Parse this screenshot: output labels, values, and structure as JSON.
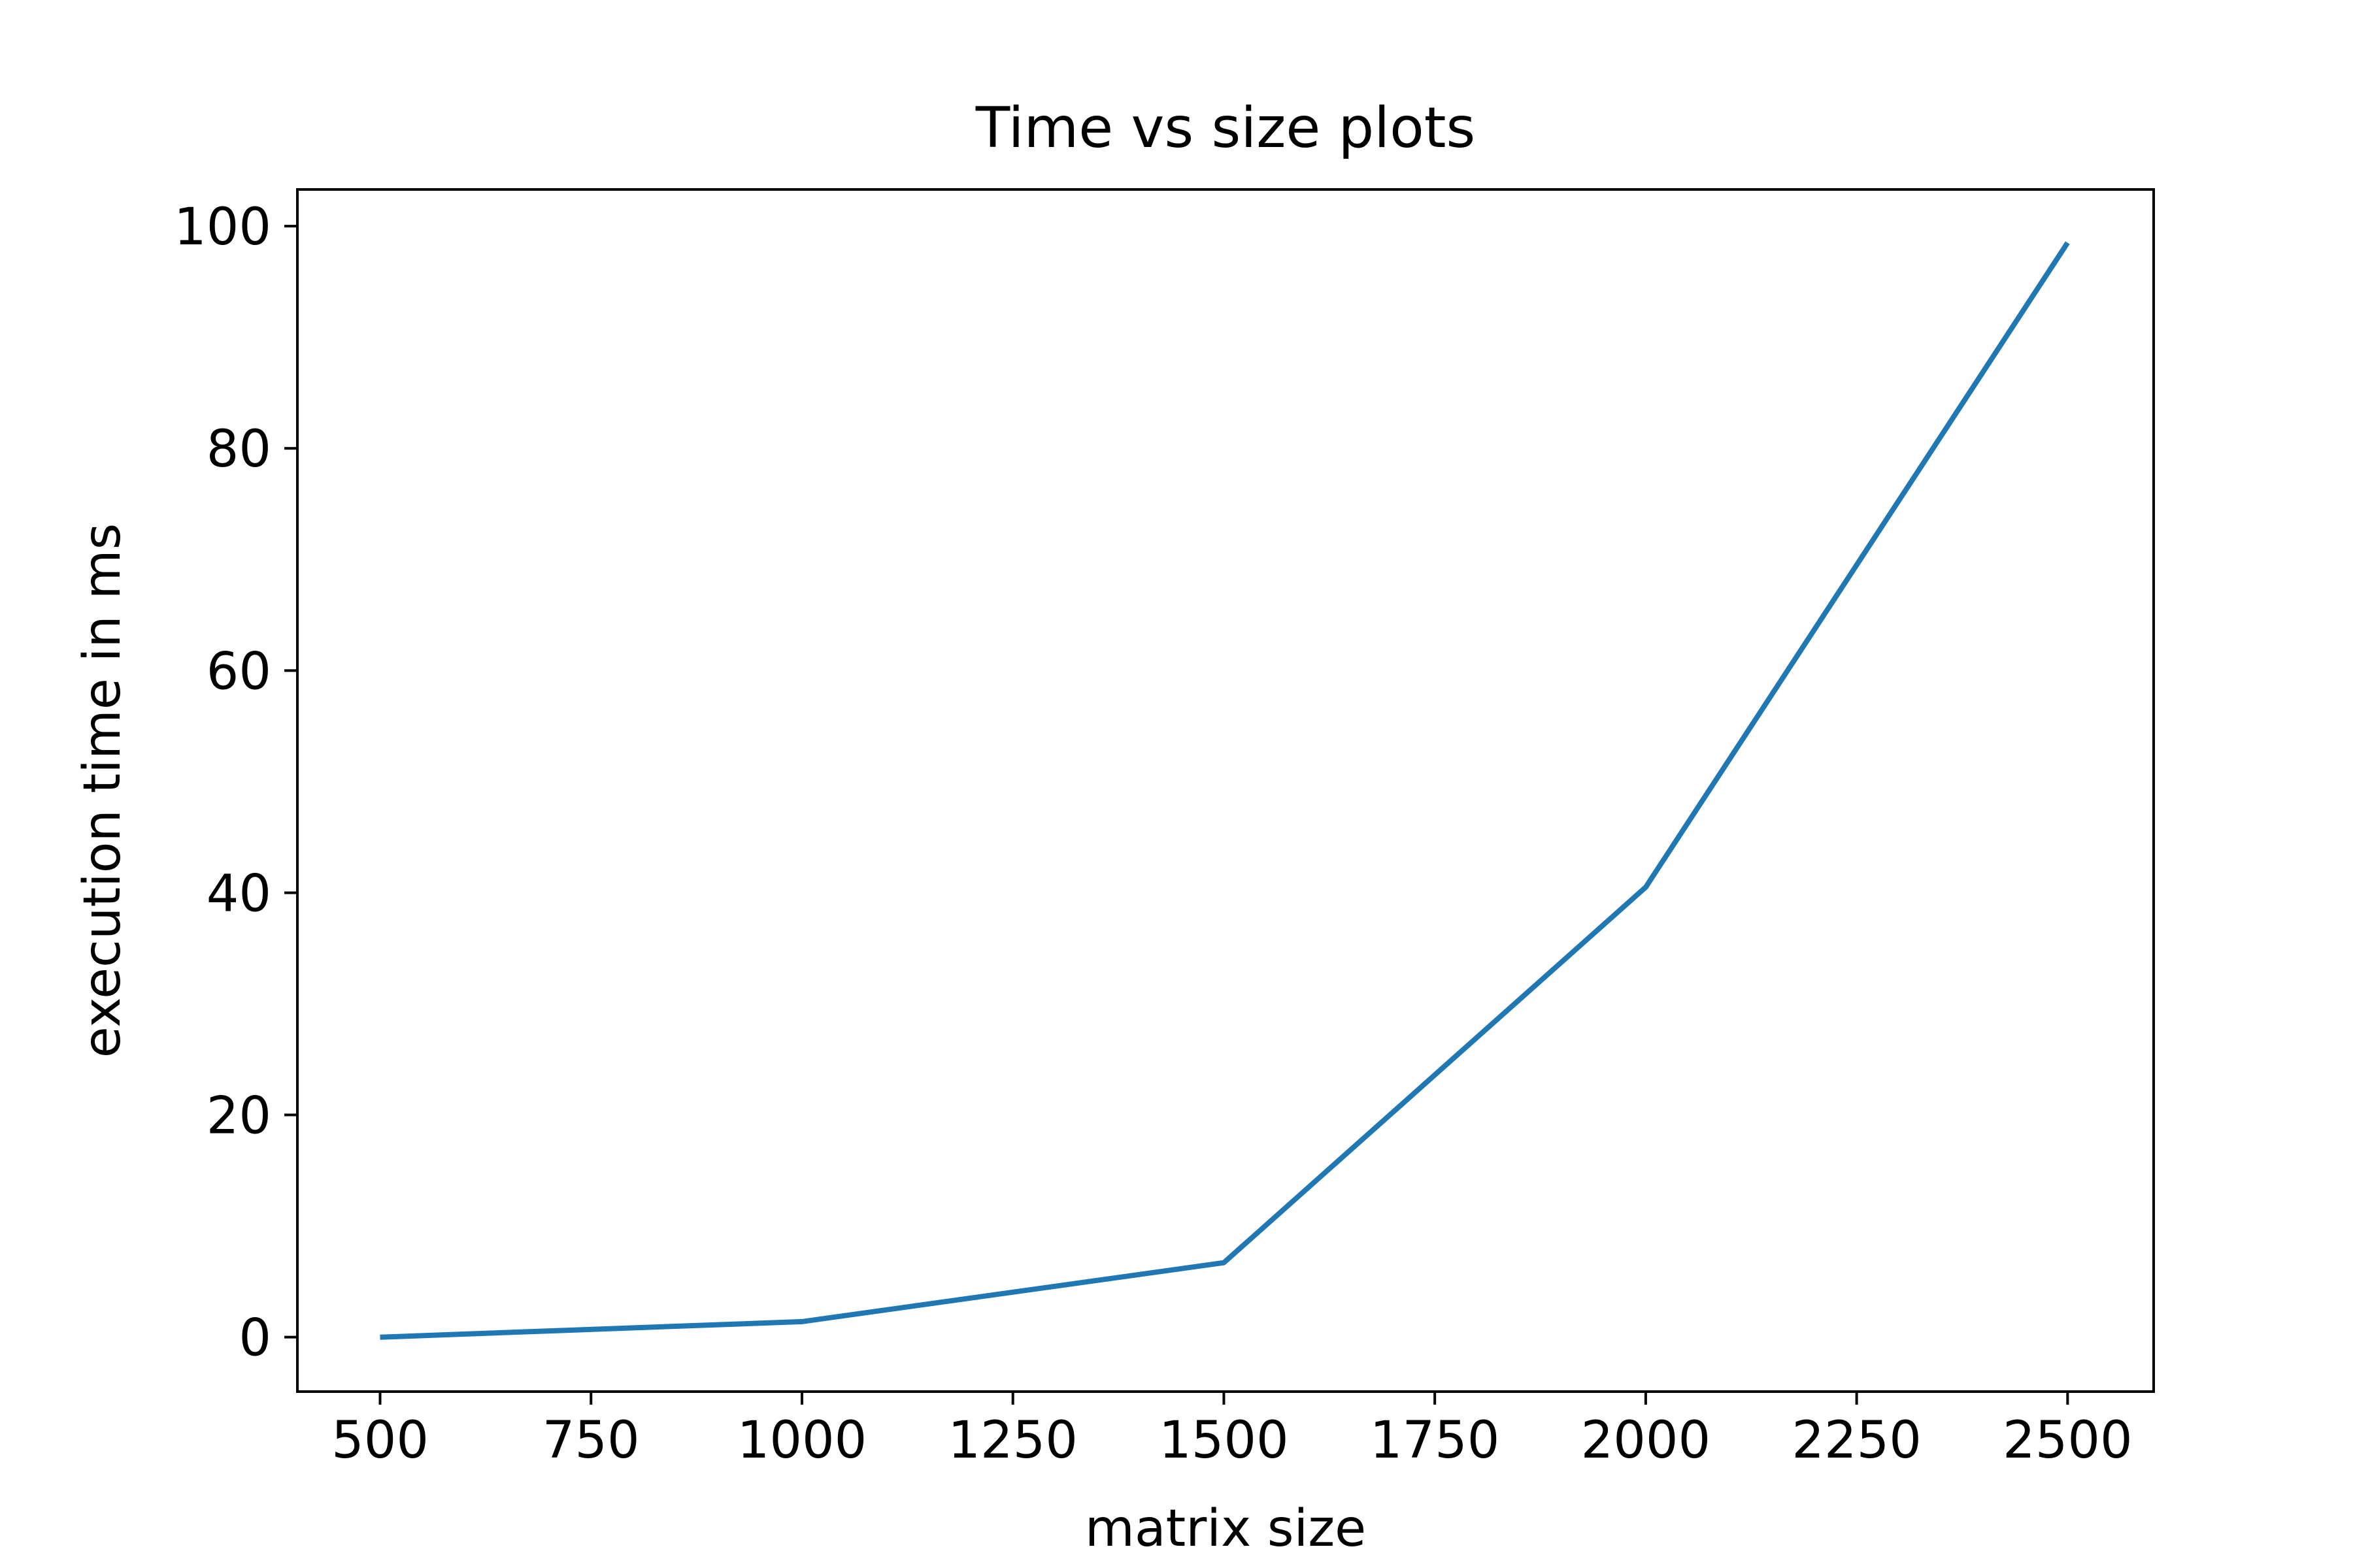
{
  "chart_data": {
    "type": "line",
    "title": "Time vs size plots",
    "xlabel": "matrix size",
    "ylabel": "execution time in ms",
    "xlim": [
      402,
      2602
    ],
    "ylim": [
      -4.9,
      103.3
    ],
    "xticks": [
      500,
      750,
      1000,
      1250,
      1500,
      1750,
      2000,
      2250,
      2500
    ],
    "yticks": [
      0,
      20,
      40,
      60,
      80,
      100
    ],
    "grid": false,
    "legend": "none",
    "series": [
      {
        "color": "#1f77b4",
        "x": [
          500,
          1000,
          1500,
          2000,
          2500
        ],
        "y": [
          0.0,
          1.4,
          6.7,
          40.5,
          98.5
        ]
      }
    ]
  }
}
